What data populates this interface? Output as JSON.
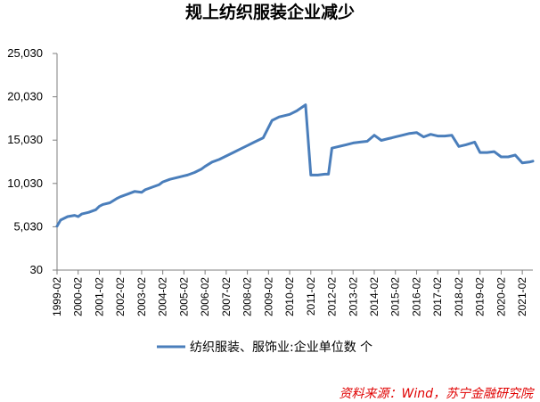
{
  "chart_data": {
    "type": "line",
    "title": "规上纺织服装企业减少",
    "xlabel": "",
    "ylabel": "",
    "ylim": [
      30,
      25030
    ],
    "yticks": [
      "30",
      "5,030",
      "10,030",
      "15,030",
      "20,030",
      "25,030"
    ],
    "ytick_values": [
      30,
      5030,
      10030,
      15030,
      20030,
      25030
    ],
    "x_range": [
      "1999-02",
      "2021-08"
    ],
    "xticks": [
      "1999-02",
      "2000-02",
      "2001-02",
      "2002-02",
      "2003-02",
      "2004-02",
      "2005-02",
      "2006-02",
      "2007-02",
      "2008-02",
      "2009-02",
      "2010-02",
      "2011-02",
      "2012-02",
      "2013-02",
      "2014-02",
      "2015-02",
      "2016-02",
      "2017-02",
      "2018-02",
      "2019-02",
      "2020-02",
      "2021-02"
    ],
    "grid": false,
    "legend_position": "bottom",
    "series": [
      {
        "name": "纺织服装、服饰业:企业单位数 个",
        "color": "#4A7EBB",
        "x": [
          "1999-02",
          "1999-04",
          "1999-08",
          "1999-12",
          "2000-02",
          "2000-04",
          "2000-08",
          "2000-12",
          "2001-02",
          "2001-04",
          "2001-08",
          "2001-12",
          "2002-02",
          "2002-06",
          "2002-10",
          "2003-02",
          "2003-04",
          "2003-08",
          "2003-12",
          "2004-02",
          "2004-06",
          "2004-12",
          "2005-02",
          "2005-04",
          "2005-08",
          "2005-12",
          "2006-02",
          "2006-06",
          "2006-10",
          "2007-02",
          "2007-06",
          "2007-10",
          "2008-02",
          "2008-06",
          "2008-11",
          "2009-02",
          "2009-04",
          "2009-08",
          "2009-12",
          "2010-02",
          "2010-06",
          "2010-11",
          "2011-02",
          "2011-06",
          "2011-10",
          "2011-12",
          "2012-02",
          "2012-06",
          "2012-10",
          "2013-02",
          "2013-06",
          "2013-10",
          "2014-02",
          "2014-06",
          "2014-10",
          "2014-12",
          "2015-02",
          "2015-06",
          "2015-10",
          "2016-02",
          "2016-06",
          "2016-10",
          "2017-02",
          "2017-06",
          "2017-10",
          "2018-02",
          "2018-06",
          "2018-11",
          "2019-02",
          "2019-06",
          "2019-10",
          "2020-02",
          "2020-06",
          "2020-10",
          "2021-02",
          "2021-06",
          "2021-08"
        ],
        "values": [
          5100,
          5800,
          6200,
          6350,
          6200,
          6500,
          6700,
          7000,
          7400,
          7600,
          7800,
          8300,
          8500,
          8800,
          9100,
          9000,
          9300,
          9600,
          9900,
          10200,
          10500,
          10800,
          10900,
          11000,
          11300,
          11700,
          12000,
          12500,
          12800,
          13200,
          13600,
          14000,
          14400,
          14800,
          15300,
          16500,
          17300,
          17700,
          17900,
          18000,
          18400,
          19100,
          11000,
          11000,
          11100,
          11100,
          14100,
          14300,
          14500,
          14700,
          14800,
          14900,
          15600,
          15000,
          15200,
          15300,
          15400,
          15600,
          15800,
          15900,
          15400,
          15700,
          15500,
          15500,
          15600,
          14300,
          14500,
          14800,
          13600,
          13600,
          13700,
          13100,
          13100,
          13300,
          12400,
          12500,
          12600
        ]
      }
    ],
    "legend": [
      "纺织服装、服饰业:企业单位数 个"
    ]
  },
  "source_note": "资料来源：Wind，苏宁金融研究院"
}
